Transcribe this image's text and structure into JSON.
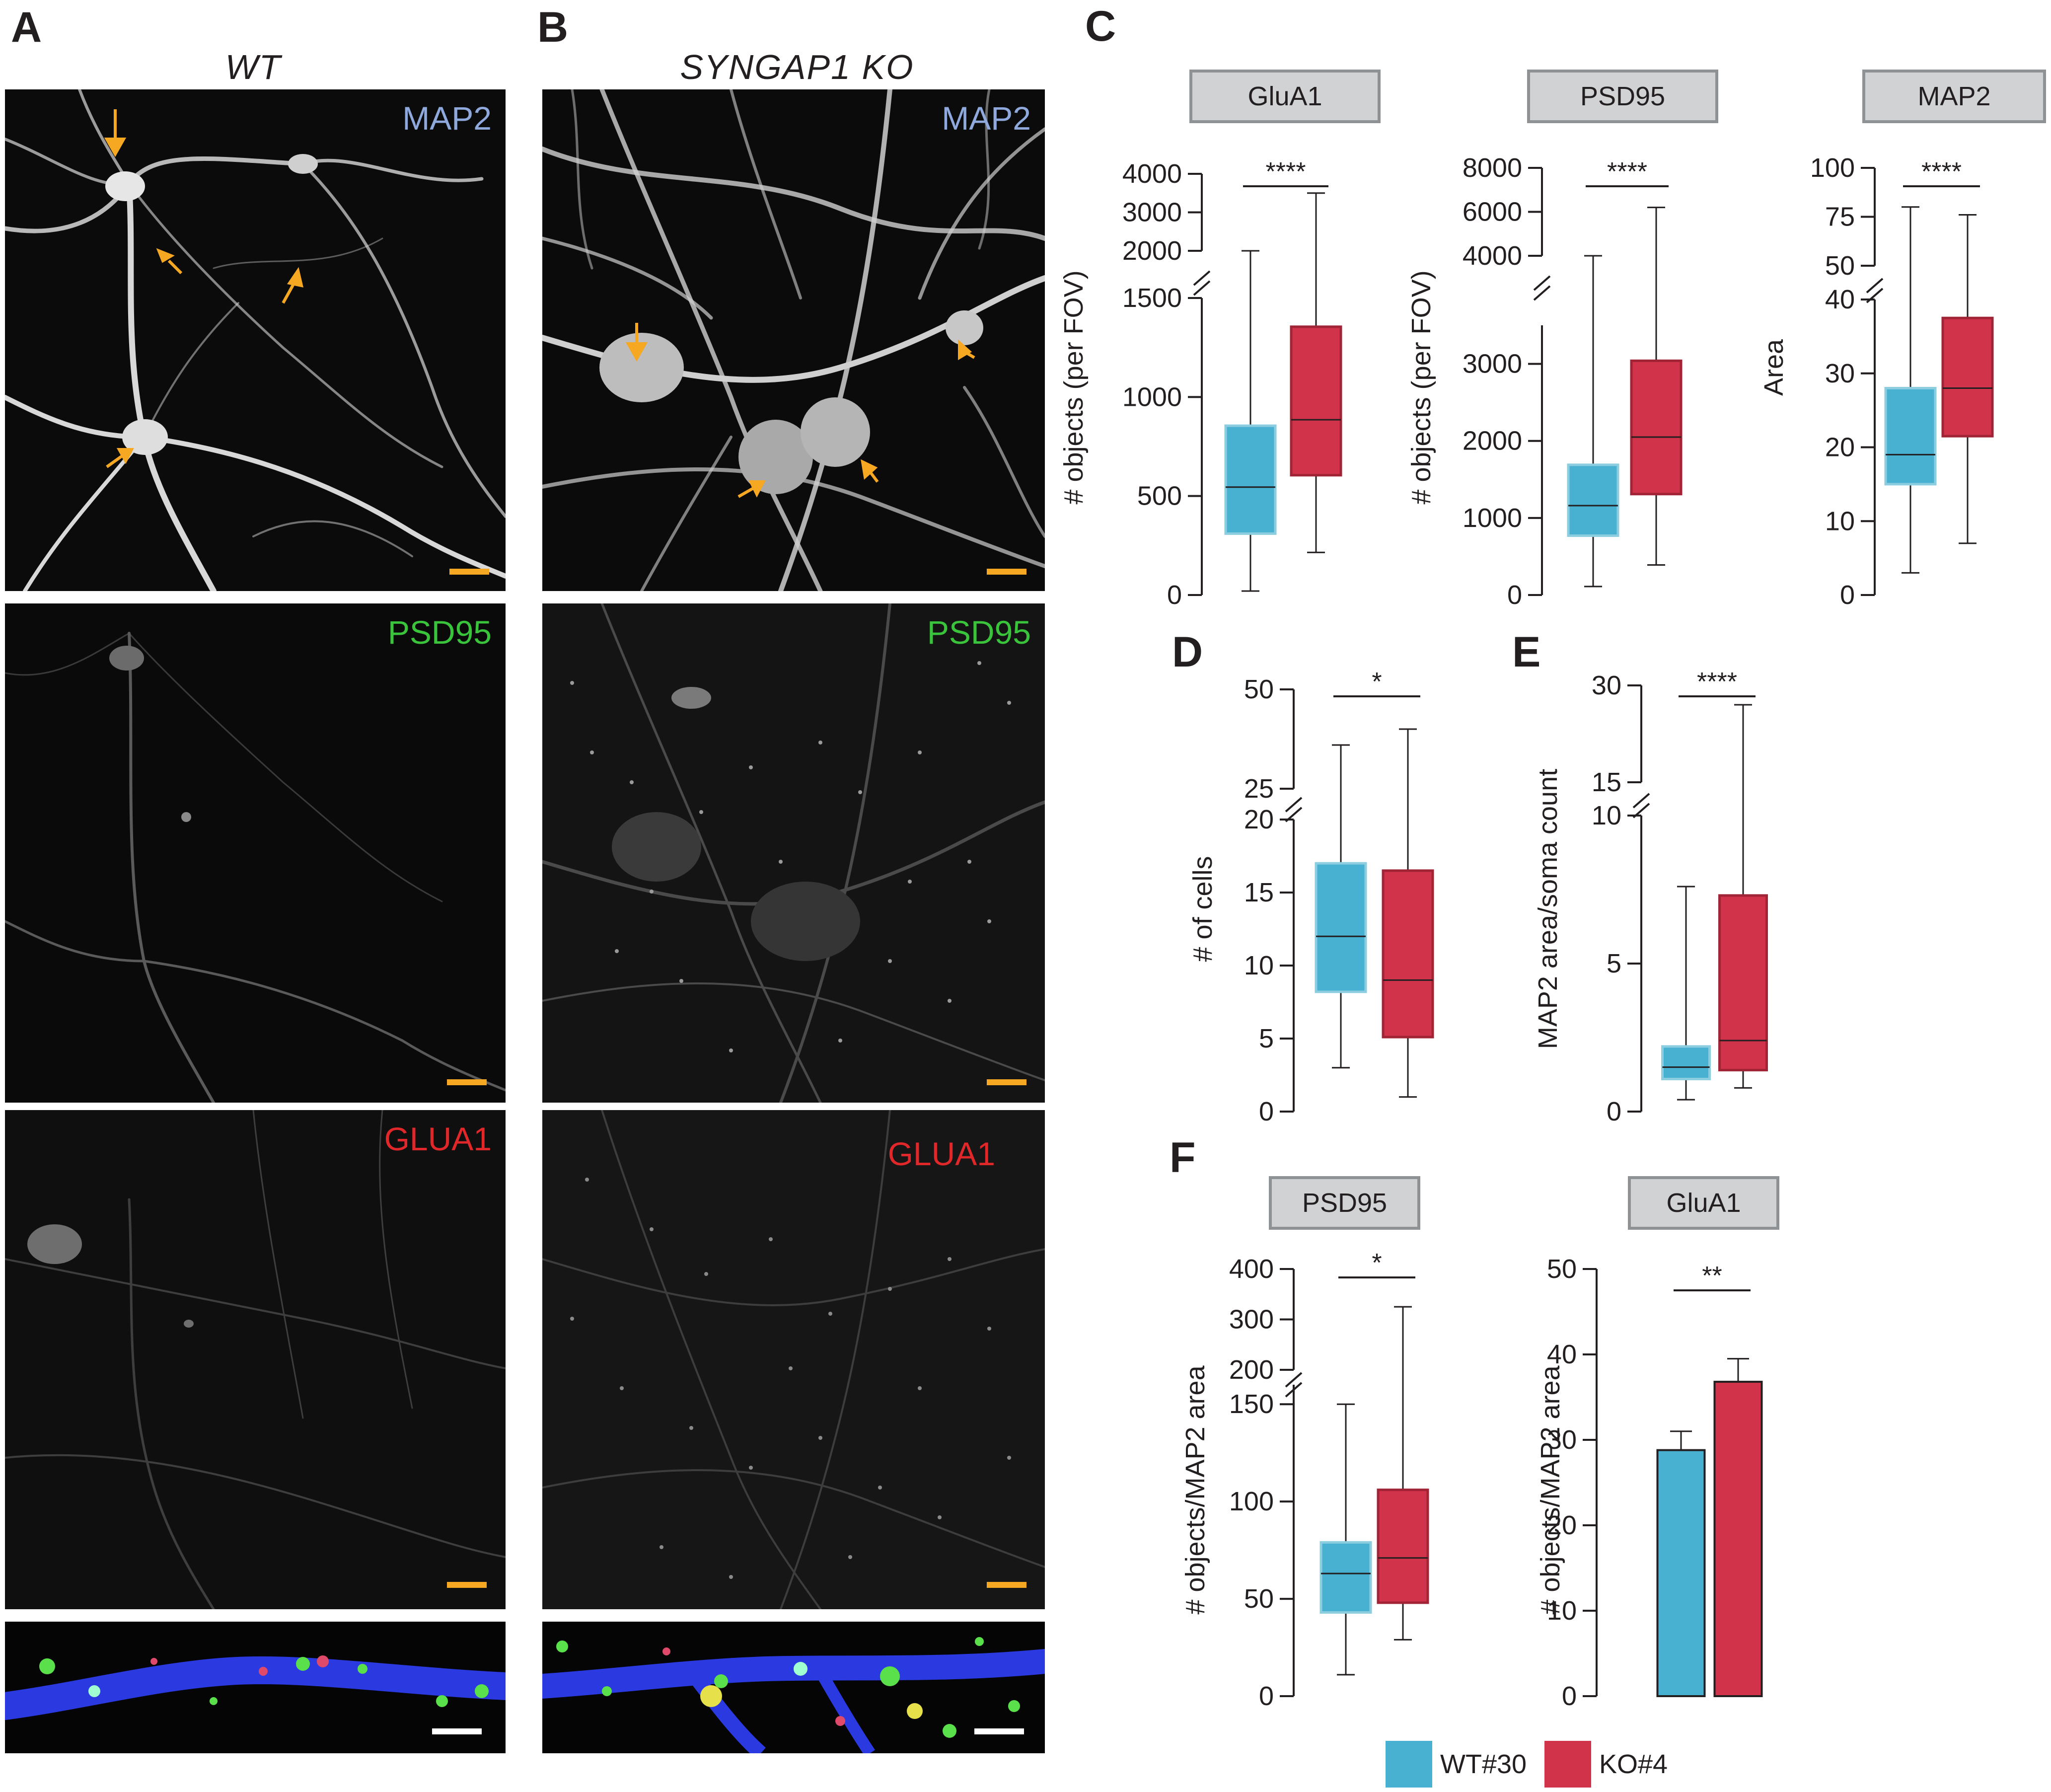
{
  "panels": {
    "A": {
      "letter": "A",
      "title": "WT"
    },
    "B": {
      "letter": "B",
      "title": "SYNGAP1 KO"
    },
    "C": {
      "letter": "C"
    },
    "D": {
      "letter": "D"
    },
    "E": {
      "letter": "E"
    },
    "F": {
      "letter": "F"
    }
  },
  "micrographs": {
    "labels": [
      {
        "text": "MAP2",
        "color": "#8fa9dc"
      },
      {
        "text": "PSD95",
        "color": "#39c43c"
      },
      {
        "text": "GLUA1",
        "color": "#e0272a"
      }
    ],
    "scalebar_color": "#f7a822",
    "merge_scalebar_color": "#ffffff"
  },
  "colors": {
    "wt": "#48b1d2",
    "ko": "#d1334a"
  },
  "legend": {
    "wt": "WT#30",
    "ko": "KO#4"
  },
  "chart_data": [
    {
      "id": "C-GluA1",
      "type": "box",
      "title": "GluA1",
      "ylabel": "# objects (per FOV)",
      "break": true,
      "lower_ticks": [
        0,
        500,
        1000,
        1500
      ],
      "lower_max": 1500,
      "upper_ticks": [
        2000,
        3000,
        4000
      ],
      "upper_range": [
        2000,
        4000
      ],
      "significance": "****",
      "series": [
        {
          "name": "WT#30",
          "min": 20,
          "q1": 310,
          "median": 545,
          "q3": 855,
          "max": 2000
        },
        {
          "name": "KO#4",
          "min": 215,
          "q1": 605,
          "median": 885,
          "q3": 1355,
          "max": 3500
        }
      ]
    },
    {
      "id": "C-PSD95",
      "type": "box",
      "title": "PSD95",
      "ylabel": "# objects (per FOV)",
      "break": true,
      "lower_ticks": [
        0,
        1000,
        2000,
        3000
      ],
      "lower_max": 3500,
      "upper_ticks": [
        4000,
        6000,
        8000
      ],
      "upper_range": [
        4000,
        8000
      ],
      "significance": "****",
      "series": [
        {
          "name": "WT#30",
          "min": 110,
          "q1": 770,
          "median": 1160,
          "q3": 1690,
          "max": 4000
        },
        {
          "name": "KO#4",
          "min": 390,
          "q1": 1310,
          "median": 2050,
          "q3": 3040,
          "max": 6200
        }
      ]
    },
    {
      "id": "C-MAP2",
      "type": "box",
      "title": "MAP2",
      "ylabel": "Area",
      "break": true,
      "lower_ticks": [
        0,
        10,
        20,
        30,
        40
      ],
      "lower_max": 40,
      "upper_ticks": [
        50,
        75,
        100
      ],
      "upper_range": [
        50,
        100
      ],
      "significance": "****",
      "series": [
        {
          "name": "WT#30",
          "min": 3,
          "q1": 15,
          "median": 19,
          "q3": 28,
          "max": 80
        },
        {
          "name": "KO#4",
          "min": 7,
          "q1": 21.5,
          "median": 28,
          "q3": 37.5,
          "max": 76
        }
      ]
    },
    {
      "id": "D",
      "type": "box",
      "title": "",
      "ylabel": "# of cells",
      "break": true,
      "lower_ticks": [
        0,
        5,
        10,
        15,
        20
      ],
      "lower_max": 20,
      "upper_ticks": [
        25,
        50
      ],
      "upper_range": [
        25,
        50
      ],
      "significance": "*",
      "series": [
        {
          "name": "WT#30",
          "min": 3,
          "q1": 8.2,
          "median": 12,
          "q3": 17,
          "max": 36
        },
        {
          "name": "KO#4",
          "min": 1,
          "q1": 5.1,
          "median": 9,
          "q3": 16.5,
          "max": 40
        }
      ]
    },
    {
      "id": "E",
      "type": "box",
      "title": "",
      "ylabel": "MAP2  area/soma count",
      "break": true,
      "lower_ticks": [
        0,
        5,
        10
      ],
      "lower_max": 10,
      "upper_ticks": [
        15,
        30
      ],
      "upper_range": [
        15,
        30
      ],
      "significance": "****",
      "series": [
        {
          "name": "WT#30",
          "min": 0.4,
          "q1": 1.1,
          "median": 1.5,
          "q3": 2.2,
          "max": 7.6
        },
        {
          "name": "KO#4",
          "min": 0.8,
          "q1": 1.4,
          "median": 2.4,
          "q3": 7.3,
          "max": 27
        }
      ]
    },
    {
      "id": "F-PSD95",
      "type": "box",
      "title": "PSD95",
      "ylabel": "# objects/MAP2 area",
      "break": true,
      "lower_ticks": [
        0,
        50,
        100,
        150
      ],
      "lower_max": 160,
      "upper_ticks": [
        200,
        300,
        400
      ],
      "upper_range": [
        200,
        400
      ],
      "significance": "*",
      "series": [
        {
          "name": "WT#30",
          "min": 11,
          "q1": 43,
          "median": 63,
          "q3": 79,
          "max": 150
        },
        {
          "name": "KO#4",
          "min": 29,
          "q1": 48,
          "median": 71,
          "q3": 106,
          "max": 325
        }
      ]
    },
    {
      "id": "F-GluA1",
      "type": "bar",
      "title": "GluA1",
      "ylabel": "# objects/MAP2 area",
      "break": false,
      "ticks": [
        0,
        10,
        20,
        30,
        40,
        50
      ],
      "ylim": [
        0,
        50
      ],
      "significance": "**",
      "series": [
        {
          "name": "WT#30",
          "value": 28.8,
          "error": 2.2
        },
        {
          "name": "KO#4",
          "value": 36.8,
          "error": 2.7
        }
      ]
    }
  ]
}
